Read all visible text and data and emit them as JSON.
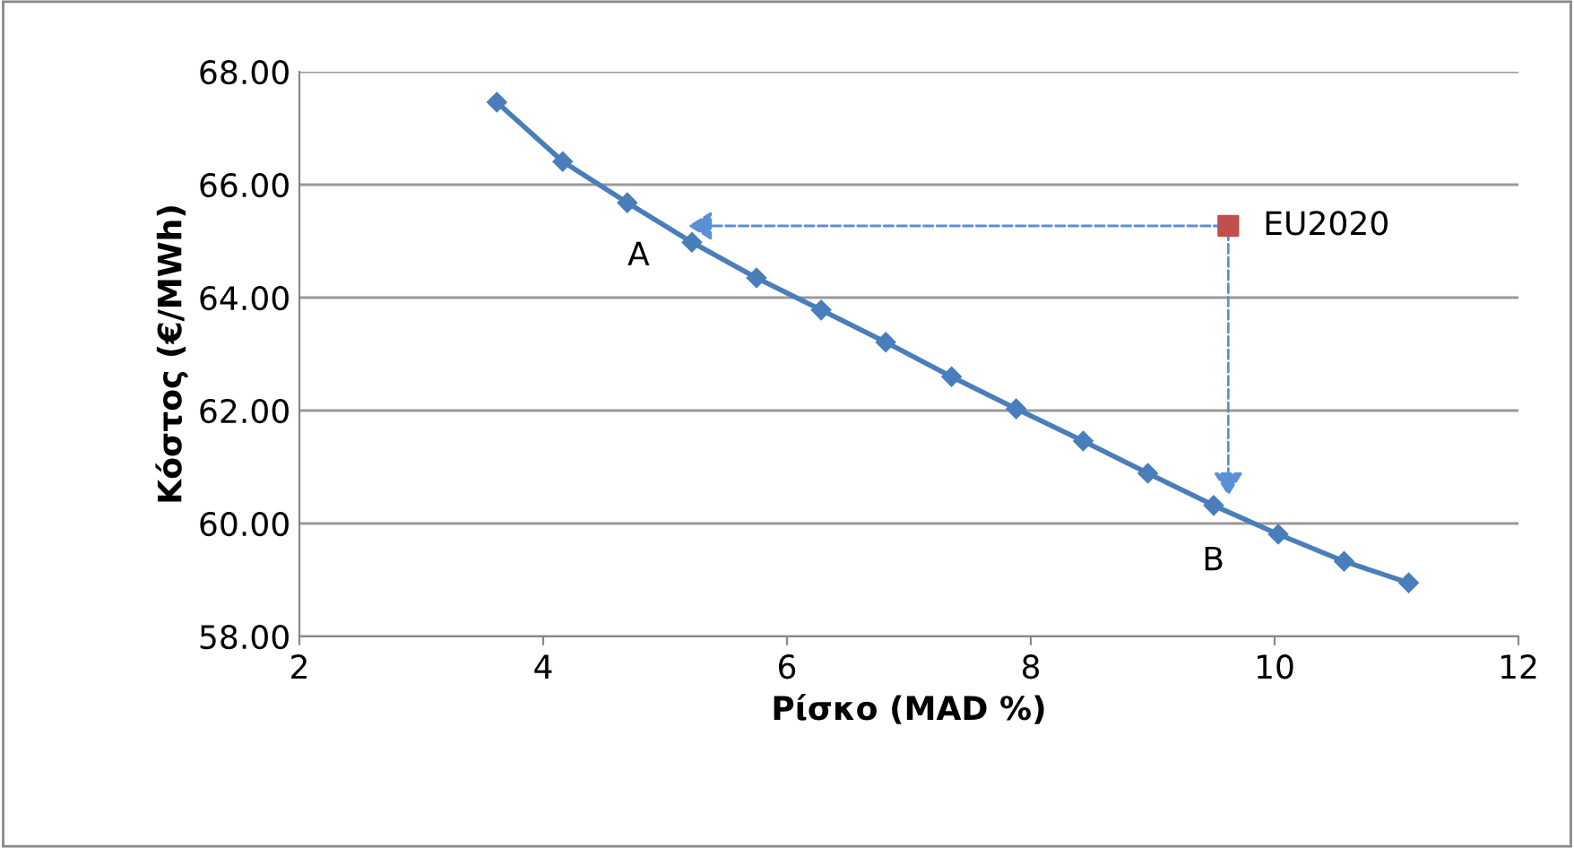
{
  "chart_data": {
    "type": "line",
    "xlabel": "Ρίσκο (MAD %)",
    "ylabel": "Κόστος (€/MWh)",
    "xlim": [
      2,
      12
    ],
    "xticks": [
      2,
      4,
      6,
      8,
      10,
      12
    ],
    "ylim": [
      58,
      68
    ],
    "yticks": [
      {
        "value": 58,
        "label": "58.00"
      },
      {
        "value": 60,
        "label": "60.00"
      },
      {
        "value": 62,
        "label": "62.00"
      },
      {
        "value": 64,
        "label": "64.00"
      },
      {
        "value": 66,
        "label": "66.00"
      },
      {
        "value": 68,
        "label": "68.00"
      }
    ],
    "grid": "y",
    "legend": false,
    "series": [
      {
        "color": "#4a7ebb",
        "marker": "diamond",
        "line_style": "solid",
        "x": [
          3.62,
          4.16,
          4.69,
          5.22,
          5.75,
          6.28,
          6.81,
          7.35,
          7.88,
          8.43,
          8.96,
          9.5,
          10.03,
          10.57,
          11.1
        ],
        "values": [
          67.46,
          66.41,
          65.68,
          64.98,
          64.35,
          63.78,
          63.21,
          62.6,
          62.03,
          61.46,
          60.89,
          60.32,
          59.81,
          59.33,
          58.95
        ]
      },
      {
        "type": "scatter",
        "name": "EU2020",
        "color": "#c0504d",
        "marker": "square",
        "x": [
          9.62
        ],
        "values": [
          65.27
        ]
      }
    ],
    "annotations": [
      {
        "text": "A",
        "x": 5.15,
        "y": 65.27
      },
      {
        "text": "B",
        "x": 9.62,
        "y": 60.4
      }
    ]
  }
}
